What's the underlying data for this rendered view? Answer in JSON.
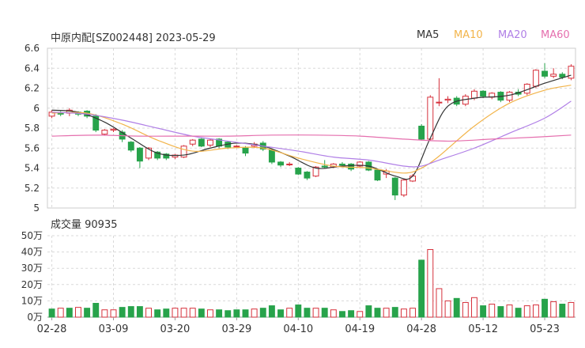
{
  "colors": {
    "up": "#d6313c",
    "down": "#27a34b",
    "ma5": "#333333",
    "ma10": "#f2b44a",
    "ma20": "#b07fe6",
    "ma60": "#e56fae",
    "grid": "#d9d9d9",
    "axis_text": "#333333"
  },
  "chart_data": [
    {
      "type": "candlestick",
      "title": "中原内配[SZ002448] 2023-05-29",
      "legend": [
        "MA5",
        "MA10",
        "MA20",
        "MA60"
      ],
      "legend_position": "top-right",
      "ylim": [
        5,
        6.6
      ],
      "yticks": [
        "6.6",
        "6.4",
        "6.2",
        "6",
        "5.8",
        "5.6",
        "5.4",
        "5.2",
        "5"
      ],
      "xtick_labels": [
        "02-28",
        "03-09",
        "03-20",
        "03-29",
        "04-10",
        "04-19",
        "04-28",
        "05-12",
        "05-23"
      ],
      "xtick_index": [
        0,
        7,
        14,
        21,
        28,
        35,
        42,
        49,
        56
      ],
      "candles": [
        [
          5.92,
          5.96,
          5.9,
          5.98
        ],
        [
          5.95,
          5.94,
          5.92,
          5.97
        ],
        [
          5.95,
          5.98,
          5.92,
          6.0
        ],
        [
          5.96,
          5.94,
          5.92,
          5.97
        ],
        [
          5.97,
          5.92,
          5.9,
          5.98
        ],
        [
          5.92,
          5.78,
          5.76,
          5.94
        ],
        [
          5.74,
          5.78,
          5.73,
          5.79
        ],
        [
          5.78,
          5.79,
          5.76,
          5.8
        ],
        [
          5.76,
          5.69,
          5.66,
          5.78
        ],
        [
          5.66,
          5.58,
          5.56,
          5.67
        ],
        [
          5.6,
          5.47,
          5.4,
          5.61
        ],
        [
          5.5,
          5.6,
          5.48,
          5.61
        ],
        [
          5.56,
          5.5,
          5.48,
          5.57
        ],
        [
          5.54,
          5.5,
          5.48,
          5.55
        ],
        [
          5.51,
          5.53,
          5.49,
          5.54
        ],
        [
          5.51,
          5.62,
          5.5,
          5.63
        ],
        [
          5.64,
          5.68,
          5.62,
          5.69
        ],
        [
          5.69,
          5.62,
          5.61,
          5.7
        ],
        [
          5.63,
          5.68,
          5.61,
          5.69
        ],
        [
          5.69,
          5.62,
          5.6,
          5.7
        ],
        [
          5.66,
          5.61,
          5.59,
          5.67
        ],
        [
          5.62,
          5.62,
          5.6,
          5.63
        ],
        [
          5.6,
          5.55,
          5.52,
          5.62
        ],
        [
          5.62,
          5.64,
          5.6,
          5.66
        ],
        [
          5.65,
          5.59,
          5.57,
          5.67
        ],
        [
          5.58,
          5.46,
          5.44,
          5.59
        ],
        [
          5.46,
          5.43,
          5.41,
          5.47
        ],
        [
          5.44,
          5.44,
          5.42,
          5.46
        ],
        [
          5.4,
          5.34,
          5.33,
          5.41
        ],
        [
          5.36,
          5.3,
          5.28,
          5.37
        ],
        [
          5.32,
          5.41,
          5.31,
          5.42
        ],
        [
          5.42,
          5.41,
          5.4,
          5.48
        ],
        [
          5.41,
          5.44,
          5.4,
          5.45
        ],
        [
          5.44,
          5.43,
          5.42,
          5.46
        ],
        [
          5.44,
          5.39,
          5.37,
          5.45
        ],
        [
          5.42,
          5.46,
          5.41,
          5.47
        ],
        [
          5.46,
          5.38,
          5.37,
          5.47
        ],
        [
          5.38,
          5.28,
          5.27,
          5.39
        ],
        [
          5.34,
          5.37,
          5.3,
          5.39
        ],
        [
          5.3,
          5.13,
          5.08,
          5.31
        ],
        [
          5.13,
          5.28,
          5.11,
          5.29
        ],
        [
          5.27,
          5.32,
          5.26,
          5.34
        ],
        [
          5.82,
          5.69,
          5.68,
          5.84
        ],
        [
          5.69,
          6.11,
          5.67,
          6.13
        ],
        [
          6.06,
          6.06,
          6.02,
          6.3
        ],
        [
          6.08,
          6.09,
          6.05,
          6.12
        ],
        [
          6.1,
          6.04,
          6.02,
          6.12
        ],
        [
          6.04,
          6.12,
          6.02,
          6.14
        ],
        [
          6.1,
          6.17,
          6.08,
          6.19
        ],
        [
          6.17,
          6.12,
          6.1,
          6.18
        ],
        [
          6.11,
          6.15,
          6.09,
          6.16
        ],
        [
          6.16,
          6.08,
          6.06,
          6.17
        ],
        [
          6.08,
          6.16,
          6.06,
          6.17
        ],
        [
          6.16,
          6.14,
          6.12,
          6.19
        ],
        [
          6.15,
          6.24,
          6.13,
          6.25
        ],
        [
          6.22,
          6.38,
          6.2,
          6.39
        ],
        [
          6.37,
          6.32,
          6.3,
          6.45
        ],
        [
          6.32,
          6.34,
          6.3,
          6.4
        ],
        [
          6.34,
          6.31,
          6.29,
          6.36
        ],
        [
          6.3,
          6.42,
          6.28,
          6.44
        ]
      ],
      "ma_series": [
        {
          "name": "MA5",
          "x": [
            0,
            3,
            6,
            9,
            12,
            15,
            18,
            21,
            24,
            27,
            30,
            33,
            36,
            39,
            41,
            43,
            45,
            48,
            52,
            56,
            59
          ],
          "values": [
            5.98,
            5.96,
            5.86,
            5.7,
            5.55,
            5.53,
            5.6,
            5.65,
            5.62,
            5.52,
            5.4,
            5.42,
            5.42,
            5.32,
            5.32,
            5.7,
            6.02,
            6.1,
            6.13,
            6.25,
            6.33
          ]
        },
        {
          "name": "MA10",
          "x": [
            0,
            4,
            8,
            12,
            16,
            20,
            24,
            28,
            32,
            36,
            40,
            42,
            44,
            48,
            52,
            56,
            59
          ],
          "values": [
            5.95,
            5.95,
            5.84,
            5.68,
            5.57,
            5.6,
            5.6,
            5.5,
            5.42,
            5.4,
            5.35,
            5.4,
            5.52,
            5.82,
            6.05,
            6.18,
            6.23
          ]
        },
        {
          "name": "MA20",
          "x": [
            0,
            4,
            8,
            12,
            16,
            20,
            24,
            28,
            32,
            36,
            40,
            42,
            44,
            48,
            52,
            56,
            59
          ],
          "values": [
            5.96,
            5.94,
            5.88,
            5.8,
            5.72,
            5.67,
            5.62,
            5.57,
            5.51,
            5.48,
            5.42,
            5.42,
            5.48,
            5.6,
            5.75,
            5.9,
            6.07
          ]
        },
        {
          "name": "MA60",
          "x": [
            0,
            5,
            10,
            15,
            20,
            25,
            30,
            35,
            40,
            45,
            50,
            55,
            59
          ],
          "values": [
            5.72,
            5.73,
            5.72,
            5.72,
            5.72,
            5.73,
            5.73,
            5.72,
            5.69,
            5.67,
            5.69,
            5.71,
            5.73
          ]
        }
      ]
    },
    {
      "type": "bar",
      "title": "成交量 90935",
      "yticks": [
        "50万",
        "40万",
        "30万",
        "20万",
        "10万",
        "0万"
      ],
      "ylim": [
        0,
        50
      ],
      "unit": "万",
      "xtick_labels": [
        "02-28",
        "03-09",
        "03-20",
        "03-29",
        "04-10",
        "04-19",
        "04-28",
        "05-12",
        "05-23"
      ],
      "values": [
        5.0,
        5.5,
        5.5,
        6.0,
        5.5,
        8.5,
        4.5,
        4.5,
        6.0,
        6.5,
        6.5,
        5.5,
        4.5,
        5.0,
        5.5,
        5.5,
        5.5,
        5.0,
        4.5,
        4.5,
        4.0,
        4.5,
        4.5,
        5.0,
        5.5,
        7.0,
        4.5,
        5.5,
        7.5,
        5.5,
        5.5,
        5.5,
        4.5,
        3.5,
        4.0,
        3.5,
        7.0,
        5.5,
        5.5,
        6.0,
        5.0,
        5.5,
        35.0,
        41.5,
        17.5,
        10.0,
        11.5,
        9.0,
        12.0,
        7.0,
        8.0,
        6.5,
        7.5,
        5.5,
        7.0,
        7.5,
        11.0,
        9.5,
        8.0,
        9.0
      ],
      "up": [
        0,
        1,
        0,
        1,
        0,
        0,
        1,
        1,
        0,
        0,
        0,
        1,
        0,
        0,
        1,
        1,
        1,
        0,
        1,
        0,
        0,
        0,
        0,
        1,
        0,
        0,
        0,
        1,
        0,
        0,
        1,
        0,
        1,
        0,
        0,
        1,
        0,
        0,
        1,
        0,
        1,
        1,
        0,
        1,
        1,
        1,
        0,
        1,
        1,
        0,
        1,
        0,
        1,
        0,
        1,
        1,
        0,
        1,
        0,
        1
      ]
    }
  ]
}
